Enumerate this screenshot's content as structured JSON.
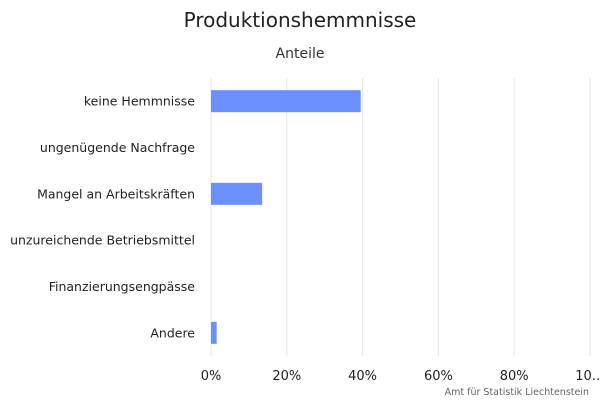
{
  "chart_data": {
    "type": "bar",
    "orientation": "horizontal",
    "title": "Produktionshemmnisse",
    "subtitle": "Anteile",
    "categories": [
      "keine Hemmnisse",
      "ungenügende Nachfrage",
      "Mangel an Arbeitskräften",
      "unzureichende Betriebsmittel",
      "Finanzierungsengpässe",
      "Andere"
    ],
    "series": [
      {
        "values": [
          39.5,
          0,
          13.5,
          0,
          0,
          1.5
        ]
      }
    ],
    "xlim": [
      0,
      100
    ],
    "x_ticks": [
      "0%",
      "20%",
      "40%",
      "60%",
      "80%",
      "10…"
    ],
    "grid": true,
    "legend": "none",
    "credit": "Amt für Statistik Liechtenstein",
    "colors": {
      "bar": "#6b8ffb",
      "grid": "#e6e6e6"
    }
  }
}
